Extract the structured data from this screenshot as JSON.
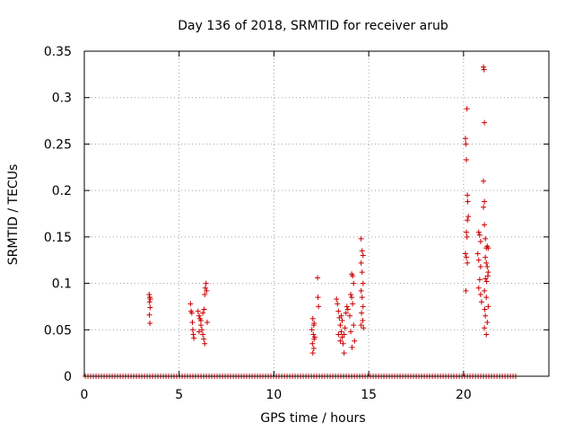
{
  "chart_data": {
    "type": "scatter",
    "title": "Day 136 of 2018, SRMTID for receiver arub",
    "xlabel": "GPS time / hours",
    "ylabel": "SRMTID / TECUs",
    "xlim": [
      0,
      24.5
    ],
    "ylim": [
      0,
      0.35
    ],
    "x_ticks": [
      0,
      5,
      10,
      15,
      20
    ],
    "x_tick_labels": [
      "0",
      "5",
      "10",
      "15",
      "20"
    ],
    "y_ticks": [
      0,
      0.05,
      0.1,
      0.15,
      0.2,
      0.25,
      0.3,
      0.35
    ],
    "y_tick_labels": [
      "0",
      "0.05",
      "0.1",
      "0.15",
      "0.2",
      "0.25",
      "0.3",
      "0.35"
    ],
    "grid": true,
    "marker": "+",
    "colors": {
      "points": "#cc0000",
      "grid": "#a0a0a0",
      "axes": "#000000"
    },
    "series": [
      {
        "name": "SRMTID",
        "baseline": {
          "y": 0,
          "x_ranges": [
            [
              0.05,
              22.8
            ]
          ]
        },
        "points": [
          [
            3.42,
            0.088
          ],
          [
            3.45,
            0.085
          ],
          [
            3.48,
            0.083
          ],
          [
            3.44,
            0.08
          ],
          [
            3.47,
            0.074
          ],
          [
            3.43,
            0.066
          ],
          [
            3.46,
            0.057
          ],
          [
            5.6,
            0.078
          ],
          [
            5.63,
            0.07
          ],
          [
            5.67,
            0.068
          ],
          [
            5.7,
            0.058
          ],
          [
            5.72,
            0.05
          ],
          [
            5.75,
            0.045
          ],
          [
            5.78,
            0.041
          ],
          [
            6.0,
            0.07
          ],
          [
            6.05,
            0.065
          ],
          [
            6.1,
            0.062
          ],
          [
            6.15,
            0.055
          ],
          [
            6.2,
            0.05
          ],
          [
            6.25,
            0.045
          ],
          [
            6.3,
            0.04
          ],
          [
            6.35,
            0.035
          ],
          [
            6.05,
            0.048
          ],
          [
            6.15,
            0.06
          ],
          [
            6.25,
            0.068
          ],
          [
            6.32,
            0.072
          ],
          [
            6.38,
            0.095
          ],
          [
            6.42,
            0.1
          ],
          [
            6.35,
            0.088
          ],
          [
            6.45,
            0.092
          ],
          [
            6.48,
            0.058
          ],
          [
            12.05,
            0.062
          ],
          [
            12.1,
            0.055
          ],
          [
            12.0,
            0.05
          ],
          [
            12.08,
            0.045
          ],
          [
            12.12,
            0.04
          ],
          [
            12.03,
            0.035
          ],
          [
            12.1,
            0.03
          ],
          [
            12.05,
            0.025
          ],
          [
            12.15,
            0.042
          ],
          [
            12.12,
            0.057
          ],
          [
            12.3,
            0.106
          ],
          [
            12.32,
            0.085
          ],
          [
            12.35,
            0.075
          ],
          [
            13.3,
            0.083
          ],
          [
            13.35,
            0.078
          ],
          [
            13.4,
            0.07
          ],
          [
            13.45,
            0.063
          ],
          [
            13.5,
            0.055
          ],
          [
            13.55,
            0.048
          ],
          [
            13.6,
            0.042
          ],
          [
            13.65,
            0.035
          ],
          [
            13.7,
            0.045
          ],
          [
            13.75,
            0.052
          ],
          [
            13.5,
            0.038
          ],
          [
            13.4,
            0.045
          ],
          [
            13.6,
            0.06
          ],
          [
            13.7,
            0.025
          ],
          [
            13.8,
            0.068
          ],
          [
            13.85,
            0.075
          ],
          [
            13.9,
            0.072
          ],
          [
            13.55,
            0.065
          ],
          [
            14.1,
            0.11
          ],
          [
            14.15,
            0.108
          ],
          [
            14.2,
            0.1
          ],
          [
            14.05,
            0.088
          ],
          [
            14.1,
            0.085
          ],
          [
            14.15,
            0.078
          ],
          [
            14.0,
            0.065
          ],
          [
            14.2,
            0.055
          ],
          [
            14.05,
            0.048
          ],
          [
            14.25,
            0.038
          ],
          [
            14.12,
            0.031
          ],
          [
            14.6,
            0.148
          ],
          [
            14.65,
            0.135
          ],
          [
            14.7,
            0.13
          ],
          [
            14.6,
            0.122
          ],
          [
            14.65,
            0.112
          ],
          [
            14.7,
            0.1
          ],
          [
            14.6,
            0.092
          ],
          [
            14.65,
            0.085
          ],
          [
            14.7,
            0.075
          ],
          [
            14.62,
            0.068
          ],
          [
            14.68,
            0.06
          ],
          [
            14.6,
            0.055
          ],
          [
            14.72,
            0.052
          ],
          [
            20.1,
            0.256
          ],
          [
            20.12,
            0.25
          ],
          [
            20.15,
            0.233
          ],
          [
            20.18,
            0.288
          ],
          [
            20.2,
            0.195
          ],
          [
            20.22,
            0.188
          ],
          [
            20.25,
            0.172
          ],
          [
            20.2,
            0.168
          ],
          [
            20.15,
            0.155
          ],
          [
            20.18,
            0.15
          ],
          [
            20.1,
            0.132
          ],
          [
            20.15,
            0.128
          ],
          [
            20.2,
            0.122
          ],
          [
            20.12,
            0.092
          ],
          [
            20.8,
            0.155
          ],
          [
            20.85,
            0.152
          ],
          [
            20.9,
            0.145
          ],
          [
            20.75,
            0.132
          ],
          [
            20.8,
            0.125
          ],
          [
            20.9,
            0.118
          ],
          [
            20.85,
            0.104
          ],
          [
            20.8,
            0.095
          ],
          [
            20.9,
            0.088
          ],
          [
            20.95,
            0.08
          ],
          [
            21.05,
            0.333
          ],
          [
            21.08,
            0.33
          ],
          [
            21.1,
            0.273
          ],
          [
            21.05,
            0.21
          ],
          [
            21.1,
            0.188
          ],
          [
            21.05,
            0.182
          ],
          [
            21.1,
            0.163
          ],
          [
            21.15,
            0.148
          ],
          [
            21.2,
            0.138
          ],
          [
            21.25,
            0.14
          ],
          [
            21.3,
            0.138
          ],
          [
            21.15,
            0.128
          ],
          [
            21.2,
            0.122
          ],
          [
            21.25,
            0.118
          ],
          [
            21.3,
            0.112
          ],
          [
            21.15,
            0.105
          ],
          [
            21.22,
            0.102
          ],
          [
            21.28,
            0.108
          ],
          [
            21.1,
            0.092
          ],
          [
            21.2,
            0.085
          ],
          [
            21.3,
            0.075
          ],
          [
            21.15,
            0.065
          ],
          [
            21.25,
            0.058
          ],
          [
            21.1,
            0.052
          ],
          [
            21.2,
            0.045
          ],
          [
            21.12,
            0.072
          ]
        ]
      }
    ]
  }
}
